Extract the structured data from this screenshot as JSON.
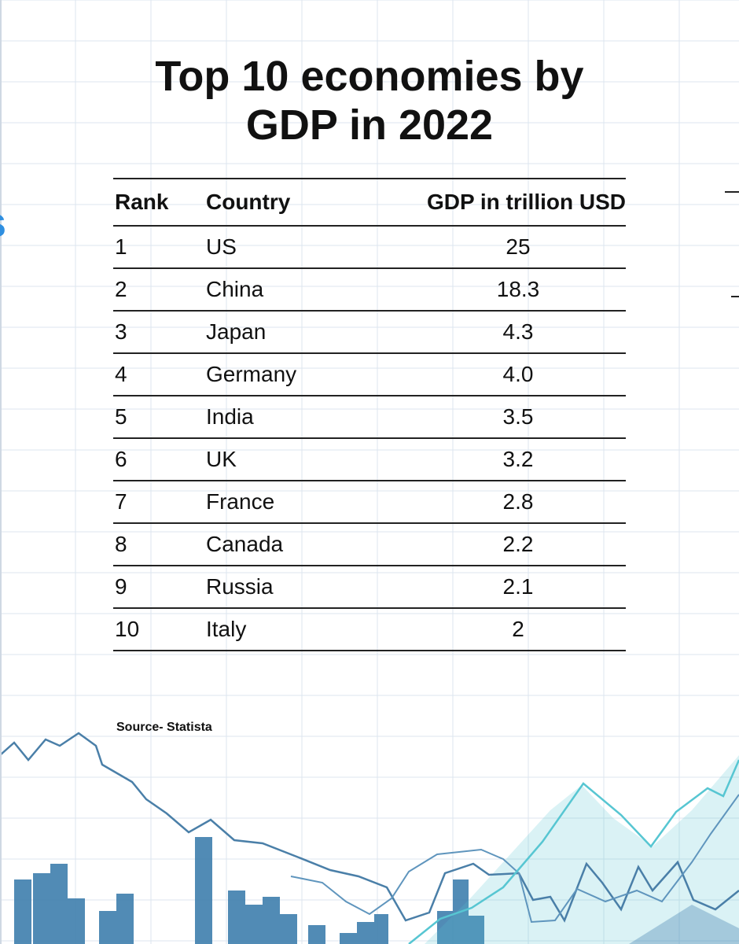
{
  "title_line1": "Top 10 economies by",
  "title_line2": "GDP in 2022",
  "side_glyph": "s",
  "source": "Source- Statista",
  "colors": {
    "accent_blue": "#2f8fe0",
    "bar_blue": "#3f7fae",
    "teal_line": "#57c6d2",
    "grid": "#dce6ef"
  },
  "chart_data": {
    "type": "table",
    "title": "Top 10 economies by GDP in 2022",
    "columns": [
      "Rank",
      "Country",
      "GDP in trillion USD"
    ],
    "rows": [
      [
        "1",
        "US",
        "25"
      ],
      [
        "2",
        "China",
        "18.3"
      ],
      [
        "3",
        "Japan",
        "4.3"
      ],
      [
        "4",
        "Germany",
        "4.0"
      ],
      [
        "5",
        "India",
        "3.5"
      ],
      [
        "6",
        "UK",
        "3.2"
      ],
      [
        "7",
        "France",
        "2.8"
      ],
      [
        "8",
        "Canada",
        "2.2"
      ],
      [
        "9",
        "Russia",
        "2.1"
      ],
      [
        "10",
        "Italy",
        "2"
      ]
    ]
  }
}
